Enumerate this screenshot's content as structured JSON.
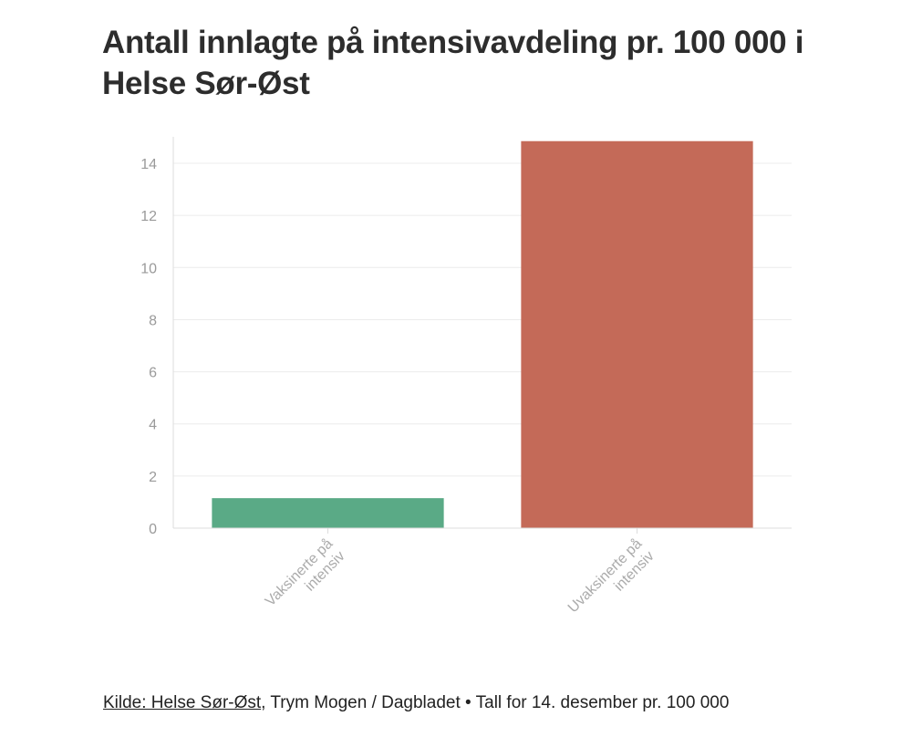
{
  "title": "Antall innlagte på intensivavdeling pr. 100 000 i Helse Sør-Øst",
  "source": {
    "link_text": "Kilde: Helse Sør-Øst",
    "rest_text": ", Trym Mogen / Dagbladet • Tall for 14. desember pr. 100 000"
  },
  "chart_data": {
    "type": "bar",
    "categories": [
      "Vaksinerte på intensiv",
      "Uvaksinerte på intensiv"
    ],
    "category_lines": [
      [
        "Vaksinerte på",
        "intensiv"
      ],
      [
        "Uvaksinerte på",
        "intensiv"
      ]
    ],
    "values": [
      1.15,
      14.85
    ],
    "colors": [
      "#5aaa86",
      "#c46a58"
    ],
    "ylim": [
      0,
      15
    ],
    "yticks": [
      0,
      2,
      4,
      6,
      8,
      10,
      12,
      14
    ],
    "grid": true
  }
}
